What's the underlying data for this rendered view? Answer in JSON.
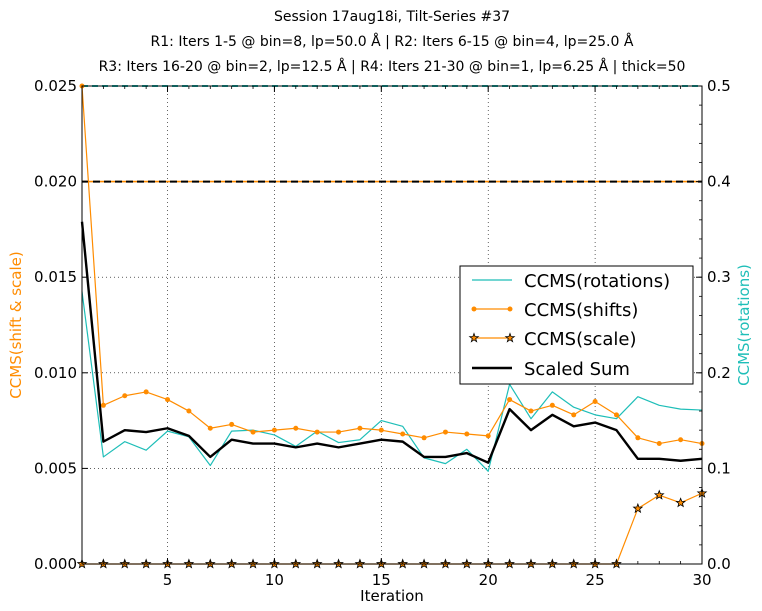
{
  "chart_data": {
    "type": "line",
    "title_lines": [
      "Session 17aug18i, Tilt-Series #37",
      "R1: Iters 1-5 @ bin=8, lp=50.0 Å | R2: Iters 6-15 @ bin=4, lp=25.0 Å",
      "R3: Iters 16-20 @ bin=2, lp=12.5 Å | R4: Iters 21-30 @ bin=1, lp=6.25 Å | thick=50"
    ],
    "xlabel": "Iteration",
    "ylabel_left": "CCMS(shift & scale)",
    "ylabel_right": "CCMS(rotations)",
    "xlim": [
      1,
      30
    ],
    "ylim_left": [
      0,
      0.025
    ],
    "ylim_right": [
      0,
      0.5
    ],
    "xticks": [
      "5",
      "10",
      "15",
      "20",
      "25",
      "30"
    ],
    "yticks_left": [
      "0.000",
      "0.005",
      "0.010",
      "0.015",
      "0.020",
      "0.025"
    ],
    "yticks_right": [
      "0.0",
      "0.1",
      "0.2",
      "0.3",
      "0.4",
      "0.5"
    ],
    "grid": true,
    "legend_position": "center-right",
    "colors": {
      "rotations": "#1ebeb8",
      "shifts": "#ff8c00",
      "scale": "#ff8c00",
      "scaled_sum": "#000000",
      "axis_label_left": "#ff8c00",
      "axis_label_right": "#1ebeb8"
    },
    "reference_lines": [
      {
        "axis": "left",
        "y": 0.025,
        "color": "#1ebeb8",
        "style": "dashed"
      },
      {
        "axis": "left",
        "y": 0.02,
        "color": "#ff8c00",
        "style": "solid"
      },
      {
        "axis": "left",
        "y": 0.02,
        "color": "#000000",
        "style": "dashed"
      }
    ],
    "x": [
      1,
      2,
      3,
      4,
      5,
      6,
      7,
      8,
      9,
      10,
      11,
      12,
      13,
      14,
      15,
      16,
      17,
      18,
      19,
      20,
      21,
      22,
      23,
      24,
      25,
      26,
      27,
      28,
      29,
      30
    ],
    "series": [
      {
        "key": "rotations",
        "name": "CCMS(rotations)",
        "axis": "right",
        "marker": "none",
        "values": [
          0.285,
          0.112,
          0.128,
          0.119,
          0.139,
          0.133,
          0.103,
          0.139,
          0.14,
          0.135,
          0.123,
          0.139,
          0.127,
          0.13,
          0.15,
          0.144,
          0.111,
          0.105,
          0.12,
          0.097,
          0.188,
          0.152,
          0.18,
          0.164,
          0.156,
          0.152,
          0.175,
          0.166,
          0.162,
          0.161
        ]
      },
      {
        "key": "shifts",
        "name": "CCMS(shifts)",
        "axis": "left",
        "marker": "dot",
        "values": [
          0.025,
          0.0083,
          0.0088,
          0.009,
          0.0086,
          0.008,
          0.0071,
          0.0073,
          0.0069,
          0.007,
          0.0071,
          0.0069,
          0.0069,
          0.0071,
          0.007,
          0.0068,
          0.0066,
          0.0069,
          0.0068,
          0.0067,
          0.0086,
          0.008,
          0.0083,
          0.0078,
          0.0085,
          0.0078,
          0.0066,
          0.0063,
          0.0065,
          0.0063
        ]
      },
      {
        "key": "scale",
        "name": "CCMS(scale)",
        "axis": "left",
        "marker": "star",
        "values": [
          0,
          0,
          0,
          0,
          0,
          0,
          0,
          0,
          0,
          0,
          0,
          0,
          0,
          0,
          0,
          0,
          0,
          0,
          0,
          0,
          0,
          0,
          0,
          0,
          0,
          0,
          0.0029,
          0.0036,
          0.0032,
          0.0037
        ]
      },
      {
        "key": "scaled_sum",
        "name": "Scaled Sum",
        "axis": "left",
        "marker": "none",
        "values": [
          0.0179,
          0.0064,
          0.007,
          0.0069,
          0.0071,
          0.0067,
          0.0056,
          0.0065,
          0.0063,
          0.0063,
          0.0061,
          0.0063,
          0.0061,
          0.0063,
          0.0065,
          0.0064,
          0.0056,
          0.0056,
          0.0058,
          0.0053,
          0.0081,
          0.007,
          0.0078,
          0.0072,
          0.0074,
          0.007,
          0.0055,
          0.0055,
          0.0054,
          0.0055
        ]
      }
    ],
    "legend": [
      "CCMS(rotations)",
      "CCMS(shifts)",
      "CCMS(scale)",
      "Scaled Sum"
    ]
  }
}
